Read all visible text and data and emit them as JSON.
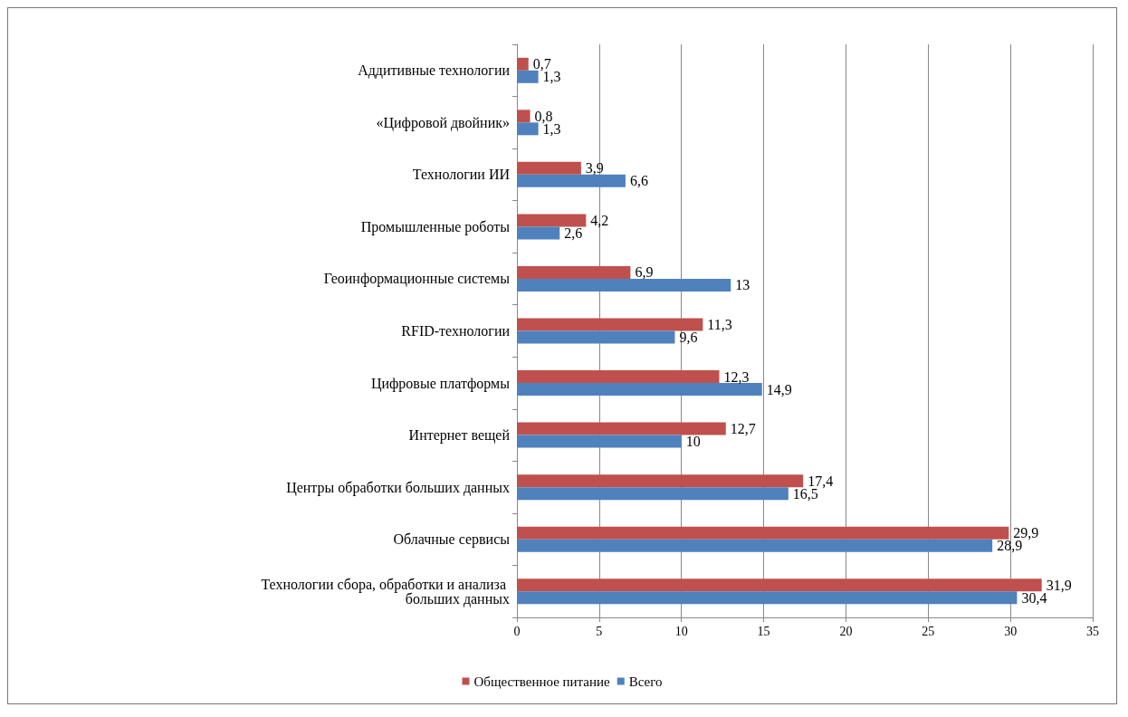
{
  "chart_data": {
    "type": "bar",
    "orientation": "horizontal",
    "categories": [
      "Аддитивные технологии",
      "«Цифровой двойник»",
      "Технологии ИИ",
      "Промышленные роботы",
      "Геоинформационные системы",
      "RFID-технологии",
      "Цифровые платформы",
      "Интернет вещей",
      "Центры обработки больших данных",
      "Облачные сервисы",
      "Технологии сбора, обработки и анализа больших данных"
    ],
    "series": [
      {
        "name": "Общественное питание",
        "color": "#c0504d",
        "values": [
          0.7,
          0.8,
          3.9,
          4.2,
          6.9,
          11.3,
          12.3,
          12.7,
          17.4,
          29.9,
          31.9
        ],
        "value_labels": [
          "0,7",
          "0,8",
          "3,9",
          "4,2",
          "6,9",
          "11,3",
          "12,3",
          "12,7",
          "17,4",
          "29,9",
          "31,9"
        ]
      },
      {
        "name": "Всего",
        "color": "#4f81bd",
        "values": [
          1.3,
          1.3,
          6.6,
          2.6,
          13,
          9.6,
          14.9,
          10,
          16.5,
          28.9,
          30.4
        ],
        "value_labels": [
          "1,3",
          "1,3",
          "6,6",
          "2,6",
          "13",
          "9,6",
          "14,9",
          "10",
          "16,5",
          "28,9",
          "30,4"
        ]
      }
    ],
    "xlim": [
      0,
      35
    ],
    "xticks": [
      0,
      5,
      10,
      15,
      20,
      25,
      30,
      35
    ],
    "grid": "x",
    "legend": "bottom"
  }
}
